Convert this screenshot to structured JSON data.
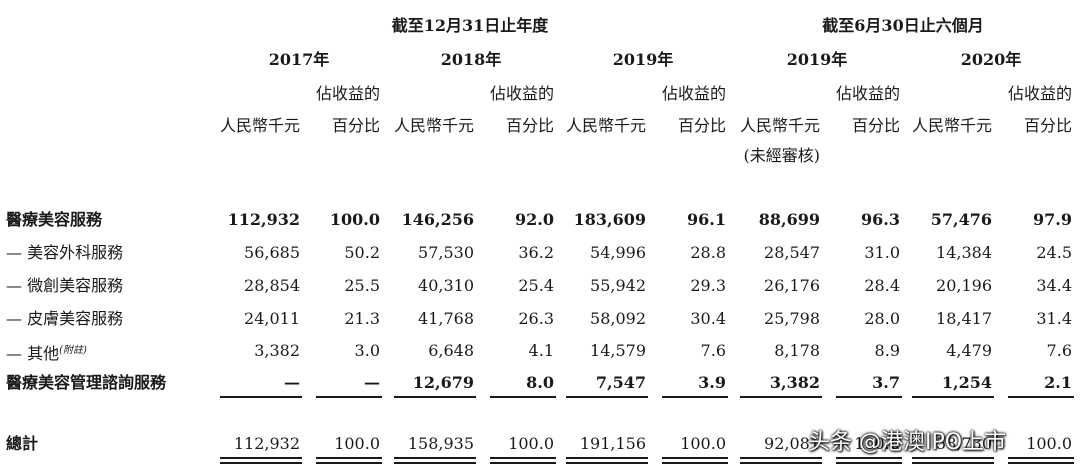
{
  "header": {
    "group1": "截至12月31日止年度",
    "group2": "截至6月30日止六個月",
    "years": [
      "2017年",
      "2018年",
      "2019年",
      "2019年",
      "2020年"
    ],
    "col_amount": "人民幣千元",
    "col_pct_line1": "佔收益的",
    "col_pct_line2": "百分比",
    "unaudited": "(未經審核)"
  },
  "rows": [
    {
      "label": "醫療美容服務",
      "bold": true,
      "values": [
        "112,932",
        "100.0",
        "146,256",
        "92.0",
        "183,609",
        "96.1",
        "88,699",
        "96.3",
        "57,476",
        "97.9"
      ]
    },
    {
      "label": "— 美容外科服務",
      "bold": false,
      "values": [
        "56,685",
        "50.2",
        "57,530",
        "36.2",
        "54,996",
        "28.8",
        "28,547",
        "31.0",
        "14,384",
        "24.5"
      ]
    },
    {
      "label": "— 微創美容服務",
      "bold": false,
      "values": [
        "28,854",
        "25.5",
        "40,310",
        "25.4",
        "55,942",
        "29.3",
        "26,176",
        "28.4",
        "20,196",
        "34.4"
      ]
    },
    {
      "label": "— 皮膚美容服務",
      "bold": false,
      "values": [
        "24,011",
        "21.3",
        "41,768",
        "26.3",
        "58,092",
        "30.4",
        "25,798",
        "28.0",
        "18,417",
        "31.4"
      ]
    },
    {
      "label": "— 其他",
      "note": "(附註)",
      "bold": false,
      "values": [
        "3,382",
        "3.0",
        "6,648",
        "4.1",
        "14,579",
        "7.6",
        "8,178",
        "8.9",
        "4,479",
        "7.6"
      ]
    },
    {
      "label": "醫療美容管理諮詢服務",
      "bold": true,
      "values": [
        "—",
        "—",
        "12,679",
        "8.0",
        "7,547",
        "3.9",
        "3,382",
        "3.7",
        "1,254",
        "2.1"
      ]
    }
  ],
  "total": {
    "label": "總計",
    "values": [
      "112,932",
      "100.0",
      "158,935",
      "100.0",
      "191,156",
      "100.0",
      "92,081",
      "100.0",
      "58,730",
      "100.0"
    ]
  },
  "watermark": "头条 @港澳IPO上市"
}
